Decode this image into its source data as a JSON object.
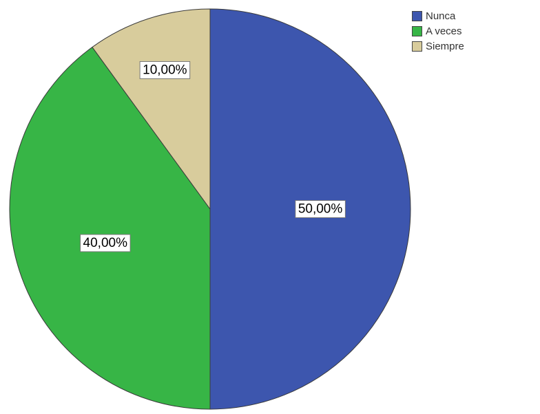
{
  "chart_data": {
    "type": "pie",
    "categories": [
      "Nunca",
      "A veces",
      "Siempre"
    ],
    "values": [
      50,
      40,
      10
    ],
    "labels": [
      "50,00%",
      "40,00%",
      "10,00%"
    ],
    "colors": [
      "#3d56ae",
      "#37b546",
      "#d8cc9c"
    ],
    "start_angle_deg": 0,
    "direction": "clockwise",
    "legend_position": "top-right",
    "legend": [
      {
        "label": "Nunca",
        "color": "#3d56ae"
      },
      {
        "label": "A veces",
        "color": "#37b546"
      },
      {
        "label": "Siempre",
        "color": "#d8cc9c"
      }
    ]
  }
}
